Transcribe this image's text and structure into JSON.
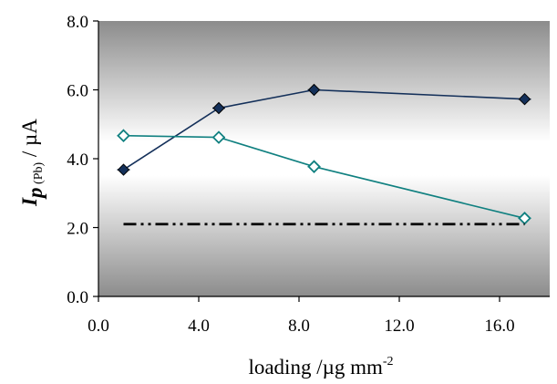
{
  "chart_data": {
    "type": "line",
    "title": "",
    "xlabel": {
      "text": "loading /µg mm",
      "superscript": "-2"
    },
    "ylabel": {
      "main": "I",
      "sub_p": "p",
      "sub_pb": " (Pb)",
      "unit": " / µA"
    },
    "xlim": [
      0,
      18
    ],
    "ylim": [
      0,
      8
    ],
    "xticks": [
      0,
      4,
      8,
      12,
      16
    ],
    "xtick_labels": [
      "0.0",
      "4.0",
      "8.0",
      "12.0",
      "16.0"
    ],
    "yticks": [
      0,
      2,
      4,
      6,
      8
    ],
    "ytick_labels": [
      "0.0",
      "2.0",
      "4.0",
      "6.0",
      "8.0"
    ],
    "grid": false,
    "legend": "none",
    "background": "vertical gradient grey-white-grey",
    "series": [
      {
        "marker": "filled-diamond",
        "color": "#14305a",
        "x": [
          1.0,
          4.8,
          8.6,
          17.0
        ],
        "y": [
          3.68,
          5.47,
          6.0,
          5.73
        ]
      },
      {
        "marker": "open-diamond",
        "color": "#108080",
        "x": [
          1.0,
          4.8,
          8.6,
          17.0
        ],
        "y": [
          4.67,
          4.62,
          3.77,
          2.27
        ]
      },
      {
        "marker": "none",
        "line_style": "dash-dot-dot",
        "color": "#000000",
        "x": [
          1.0,
          17.0
        ],
        "y": [
          2.1,
          2.1
        ]
      }
    ]
  },
  "colors": {
    "plot_dark": "#8c8c8c",
    "plot_light": "#ffffff",
    "axis": "#000000"
  }
}
